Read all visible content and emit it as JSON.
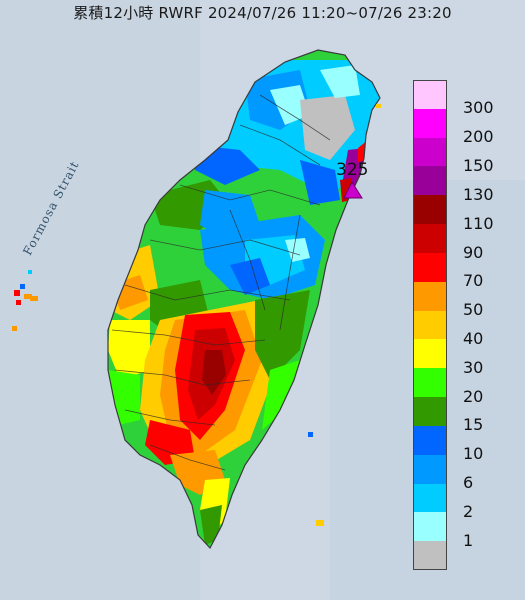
{
  "title": "累積12小時 RWRF 2024/07/26 11:20~07/26 23:20",
  "strait_label": "Formosa Strait",
  "max_label": "325",
  "legend": [
    {
      "label": "300",
      "color": "#ffc6ff"
    },
    {
      "label": "200",
      "color": "#ff00ff"
    },
    {
      "label": "150",
      "color": "#cc00cc"
    },
    {
      "label": "130",
      "color": "#990099"
    },
    {
      "label": "110",
      "color": "#990000"
    },
    {
      "label": "90",
      "color": "#cc0000"
    },
    {
      "label": "70",
      "color": "#ff0000"
    },
    {
      "label": "50",
      "color": "#ff9900"
    },
    {
      "label": "40",
      "color": "#ffcc00"
    },
    {
      "label": "30",
      "color": "#ffff00"
    },
    {
      "label": "20",
      "color": "#33ff00"
    },
    {
      "label": "15",
      "color": "#339900"
    },
    {
      "label": "10",
      "color": "#0066ff"
    },
    {
      "label": "6",
      "color": "#0099ff"
    },
    {
      "label": "2",
      "color": "#00ccff"
    },
    {
      "label": "1",
      "color": "#99ffff"
    },
    {
      "label": "",
      "color": "#c0c0c0"
    }
  ]
}
